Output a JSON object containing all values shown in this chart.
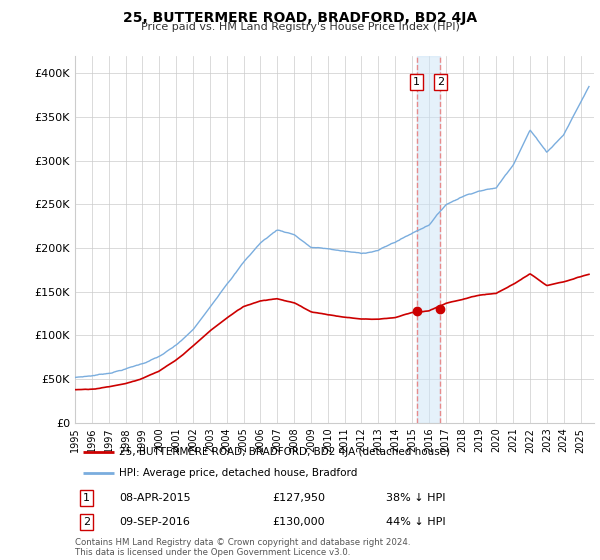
{
  "title": "25, BUTTERMERE ROAD, BRADFORD, BD2 4JA",
  "subtitle": "Price paid vs. HM Land Registry's House Price Index (HPI)",
  "ylabel_ticks": [
    "£0",
    "£50K",
    "£100K",
    "£150K",
    "£200K",
    "£250K",
    "£300K",
    "£350K",
    "£400K"
  ],
  "ytick_values": [
    0,
    50000,
    100000,
    150000,
    200000,
    250000,
    300000,
    350000,
    400000
  ],
  "ylim": [
    0,
    420000
  ],
  "xlim_start": 1995.0,
  "xlim_end": 2025.8,
  "hpi_color": "#7aadde",
  "price_color": "#cc0000",
  "marker1_date": 2015.27,
  "marker1_value": 127950,
  "marker2_date": 2016.68,
  "marker2_value": 130000,
  "transaction1_label": "1",
  "transaction2_label": "2",
  "transaction1_text": "08-APR-2015",
  "transaction1_price": "£127,950",
  "transaction1_hpi": "38% ↓ HPI",
  "transaction2_text": "09-SEP-2016",
  "transaction2_price": "£130,000",
  "transaction2_hpi": "44% ↓ HPI",
  "legend_label1": "25, BUTTERMERE ROAD, BRADFORD, BD2 4JA (detached house)",
  "legend_label2": "HPI: Average price, detached house, Bradford",
  "footer": "Contains HM Land Registry data © Crown copyright and database right 2024.\nThis data is licensed under the Open Government Licence v3.0.",
  "background_color": "#ffffff",
  "grid_color": "#cccccc",
  "hpi_anchors_x": [
    1995,
    1996,
    1997,
    1998,
    1999,
    2000,
    2001,
    2002,
    2003,
    2004,
    2005,
    2006,
    2007,
    2008,
    2009,
    2010,
    2011,
    2012,
    2013,
    2014,
    2015,
    2016,
    2017,
    2018,
    2019,
    2020,
    2021,
    2022,
    2023,
    2024,
    2025.5
  ],
  "hpi_anchors_y": [
    52000,
    54000,
    57000,
    62000,
    68000,
    76000,
    88000,
    105000,
    130000,
    158000,
    183000,
    205000,
    220000,
    215000,
    200000,
    198000,
    195000,
    192000,
    196000,
    205000,
    215000,
    225000,
    248000,
    258000,
    265000,
    268000,
    295000,
    335000,
    310000,
    330000,
    385000
  ],
  "price_anchors_x": [
    1995,
    1996,
    1997,
    1998,
    1999,
    2000,
    2001,
    2002,
    2003,
    2004,
    2005,
    2006,
    2007,
    2008,
    2009,
    2010,
    2011,
    2012,
    2013,
    2014,
    2015,
    2016,
    2017,
    2018,
    2019,
    2020,
    2021,
    2022,
    2023,
    2024,
    2025.5
  ],
  "price_anchors_y": [
    38000,
    39000,
    42000,
    46000,
    52000,
    60000,
    72000,
    88000,
    105000,
    120000,
    133000,
    140000,
    143000,
    138000,
    128000,
    125000,
    122000,
    120000,
    120000,
    122000,
    127950,
    130000,
    138000,
    143000,
    148000,
    150000,
    160000,
    172000,
    158000,
    162000,
    170000
  ]
}
